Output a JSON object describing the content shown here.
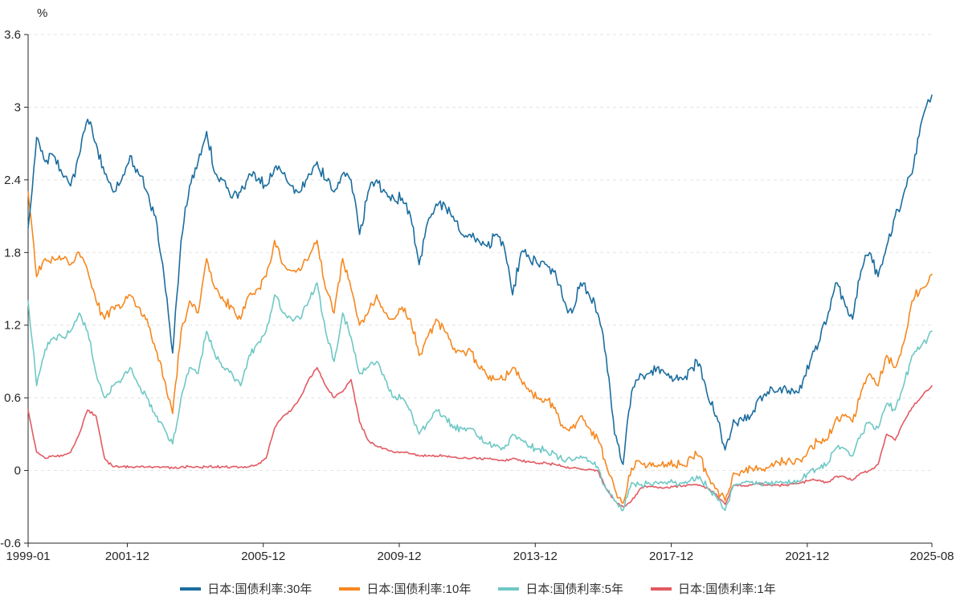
{
  "page": {
    "background": "#ffffff"
  },
  "chart_data": {
    "type": "line",
    "title": "",
    "unit_label": "%",
    "xlabel": "",
    "ylabel": "%",
    "ylim": [
      -0.6,
      3.6
    ],
    "xlim": [
      1999.0,
      2025.583
    ],
    "grid": "dashed-horizontal",
    "legend_position": "bottom-center",
    "axis_color": "#262626",
    "grid_color": "#e3e3e3",
    "y_ticks": [
      {
        "v": 3.6,
        "label": "3.6"
      },
      {
        "v": 3.0,
        "label": "3"
      },
      {
        "v": 2.4,
        "label": "2.4"
      },
      {
        "v": 1.8,
        "label": "1.8"
      },
      {
        "v": 1.2,
        "label": "1.2"
      },
      {
        "v": 0.6,
        "label": "0.6"
      },
      {
        "v": 0.0,
        "label": "0"
      },
      {
        "v": -0.6,
        "label": "-0.6"
      }
    ],
    "x_ticks": [
      {
        "t": 1999.0,
        "label": "1999-01"
      },
      {
        "t": 2001.917,
        "label": "2001-12"
      },
      {
        "t": 2005.917,
        "label": "2005-12"
      },
      {
        "t": 2009.917,
        "label": "2009-12"
      },
      {
        "t": 2013.917,
        "label": "2013-12"
      },
      {
        "t": 2017.917,
        "label": "2017-12"
      },
      {
        "t": 2021.917,
        "label": "2021-12"
      },
      {
        "t": 2025.583,
        "label": "2025-08"
      }
    ],
    "x": [
      1999.0,
      1999.25,
      1999.5,
      1999.75,
      2000.0,
      2000.25,
      2000.5,
      2000.75,
      2001.0,
      2001.25,
      2001.5,
      2001.75,
      2002.0,
      2002.25,
      2002.5,
      2002.75,
      2003.0,
      2003.25,
      2003.5,
      2003.75,
      2004.0,
      2004.25,
      2004.5,
      2004.75,
      2005.0,
      2005.25,
      2005.5,
      2005.75,
      2006.0,
      2006.25,
      2006.5,
      2006.75,
      2007.0,
      2007.25,
      2007.5,
      2007.75,
      2008.0,
      2008.25,
      2008.5,
      2008.75,
      2009.0,
      2009.25,
      2009.5,
      2009.75,
      2010.0,
      2010.25,
      2010.5,
      2010.75,
      2011.0,
      2011.25,
      2011.5,
      2011.75,
      2012.0,
      2012.25,
      2012.5,
      2012.75,
      2013.0,
      2013.25,
      2013.5,
      2013.75,
      2014.0,
      2014.25,
      2014.5,
      2014.75,
      2015.0,
      2015.25,
      2015.5,
      2015.75,
      2016.0,
      2016.25,
      2016.5,
      2016.75,
      2017.0,
      2017.25,
      2017.5,
      2017.75,
      2018.0,
      2018.25,
      2018.5,
      2018.75,
      2019.0,
      2019.25,
      2019.5,
      2019.75,
      2020.0,
      2020.25,
      2020.5,
      2020.75,
      2021.0,
      2021.25,
      2021.5,
      2021.75,
      2022.0,
      2022.25,
      2022.5,
      2022.75,
      2023.0,
      2023.25,
      2023.5,
      2023.75,
      2024.0,
      2024.25,
      2024.5,
      2024.75,
      2025.0,
      2025.25,
      2025.583
    ],
    "series": [
      {
        "name": "日本:国债利率:30年",
        "color": "#1b6d9e",
        "values": [
          2.0,
          2.75,
          2.55,
          2.6,
          2.45,
          2.35,
          2.6,
          2.9,
          2.7,
          2.45,
          2.3,
          2.4,
          2.6,
          2.45,
          2.3,
          2.1,
          1.6,
          0.97,
          1.9,
          2.35,
          2.55,
          2.8,
          2.45,
          2.4,
          2.25,
          2.3,
          2.45,
          2.4,
          2.35,
          2.5,
          2.45,
          2.35,
          2.3,
          2.45,
          2.55,
          2.4,
          2.3,
          2.45,
          2.4,
          1.95,
          2.3,
          2.4,
          2.3,
          2.25,
          2.25,
          2.1,
          1.7,
          2.05,
          2.2,
          2.2,
          2.1,
          1.95,
          1.95,
          1.9,
          1.85,
          1.95,
          1.85,
          1.45,
          1.8,
          1.75,
          1.7,
          1.7,
          1.65,
          1.4,
          1.3,
          1.55,
          1.45,
          1.3,
          0.95,
          0.3,
          0.05,
          0.65,
          0.8,
          0.8,
          0.85,
          0.8,
          0.75,
          0.75,
          0.85,
          0.88,
          0.6,
          0.45,
          0.17,
          0.42,
          0.42,
          0.45,
          0.6,
          0.65,
          0.65,
          0.7,
          0.66,
          0.68,
          0.9,
          1.05,
          1.25,
          1.55,
          1.4,
          1.25,
          1.65,
          1.8,
          1.6,
          1.85,
          2.1,
          2.28,
          2.45,
          2.85,
          3.1
        ]
      },
      {
        "name": "日本:国债利率:10年",
        "color": "#f6881f",
        "values": [
          2.3,
          1.6,
          1.75,
          1.75,
          1.75,
          1.7,
          1.8,
          1.65,
          1.4,
          1.25,
          1.35,
          1.35,
          1.45,
          1.35,
          1.25,
          1.0,
          0.75,
          0.47,
          1.15,
          1.4,
          1.3,
          1.75,
          1.5,
          1.4,
          1.35,
          1.25,
          1.45,
          1.5,
          1.6,
          1.9,
          1.7,
          1.65,
          1.65,
          1.75,
          1.9,
          1.5,
          1.3,
          1.75,
          1.5,
          1.2,
          1.3,
          1.45,
          1.3,
          1.25,
          1.35,
          1.25,
          0.95,
          1.1,
          1.25,
          1.15,
          1.0,
          0.98,
          1.0,
          0.85,
          0.78,
          0.75,
          0.75,
          0.85,
          0.75,
          0.65,
          0.6,
          0.58,
          0.52,
          0.35,
          0.35,
          0.45,
          0.35,
          0.27,
          0.05,
          -0.15,
          -0.27,
          0.02,
          0.07,
          0.05,
          0.03,
          0.05,
          0.05,
          0.04,
          0.11,
          0.12,
          -0.05,
          -0.15,
          -0.25,
          -0.02,
          0.0,
          0.02,
          0.02,
          0.02,
          0.08,
          0.07,
          0.05,
          0.07,
          0.2,
          0.24,
          0.25,
          0.42,
          0.45,
          0.4,
          0.65,
          0.8,
          0.7,
          0.95,
          0.85,
          1.05,
          1.4,
          1.5,
          1.62
        ]
      },
      {
        "name": "日本:国债利率:5年",
        "color": "#6fc8c5",
        "values": [
          1.4,
          0.7,
          1.0,
          1.1,
          1.1,
          1.15,
          1.3,
          1.15,
          0.8,
          0.6,
          0.7,
          0.75,
          0.85,
          0.7,
          0.6,
          0.45,
          0.35,
          0.22,
          0.6,
          0.85,
          0.8,
          1.15,
          0.95,
          0.85,
          0.8,
          0.7,
          0.95,
          1.05,
          1.15,
          1.45,
          1.3,
          1.25,
          1.25,
          1.4,
          1.55,
          1.15,
          0.9,
          1.3,
          1.1,
          0.8,
          0.85,
          0.9,
          0.75,
          0.6,
          0.6,
          0.5,
          0.3,
          0.4,
          0.5,
          0.45,
          0.35,
          0.35,
          0.35,
          0.28,
          0.22,
          0.2,
          0.18,
          0.3,
          0.25,
          0.2,
          0.18,
          0.16,
          0.14,
          0.08,
          0.08,
          0.12,
          0.08,
          0.03,
          -0.15,
          -0.25,
          -0.33,
          -0.1,
          -0.12,
          -0.1,
          -0.1,
          -0.1,
          -0.1,
          -0.1,
          -0.07,
          -0.05,
          -0.15,
          -0.22,
          -0.33,
          -0.12,
          -0.1,
          -0.1,
          -0.1,
          -0.11,
          -0.09,
          -0.1,
          -0.1,
          -0.08,
          0.0,
          0.02,
          0.05,
          0.18,
          0.18,
          0.12,
          0.3,
          0.4,
          0.35,
          0.55,
          0.5,
          0.7,
          0.95,
          1.02,
          1.15
        ]
      },
      {
        "name": "日本:国债利率:1年",
        "color": "#e25a63",
        "values": [
          0.5,
          0.15,
          0.1,
          0.12,
          0.12,
          0.15,
          0.3,
          0.5,
          0.45,
          0.1,
          0.03,
          0.03,
          0.03,
          0.03,
          0.03,
          0.03,
          0.03,
          0.02,
          0.03,
          0.03,
          0.03,
          0.03,
          0.03,
          0.03,
          0.03,
          0.03,
          0.03,
          0.05,
          0.1,
          0.35,
          0.45,
          0.5,
          0.6,
          0.75,
          0.85,
          0.7,
          0.6,
          0.65,
          0.75,
          0.4,
          0.25,
          0.2,
          0.18,
          0.15,
          0.15,
          0.14,
          0.12,
          0.12,
          0.12,
          0.12,
          0.11,
          0.1,
          0.1,
          0.1,
          0.1,
          0.09,
          0.08,
          0.1,
          0.08,
          0.07,
          0.06,
          0.06,
          0.05,
          0.03,
          0.02,
          0.01,
          0.01,
          0.0,
          -0.15,
          -0.25,
          -0.3,
          -0.25,
          -0.15,
          -0.13,
          -0.14,
          -0.14,
          -0.13,
          -0.13,
          -0.12,
          -0.12,
          -0.15,
          -0.2,
          -0.28,
          -0.12,
          -0.13,
          -0.12,
          -0.11,
          -0.12,
          -0.12,
          -0.12,
          -0.11,
          -0.1,
          -0.08,
          -0.08,
          -0.1,
          -0.05,
          -0.05,
          -0.08,
          -0.02,
          0.0,
          0.05,
          0.3,
          0.25,
          0.4,
          0.52,
          0.6,
          0.7
        ]
      }
    ]
  }
}
